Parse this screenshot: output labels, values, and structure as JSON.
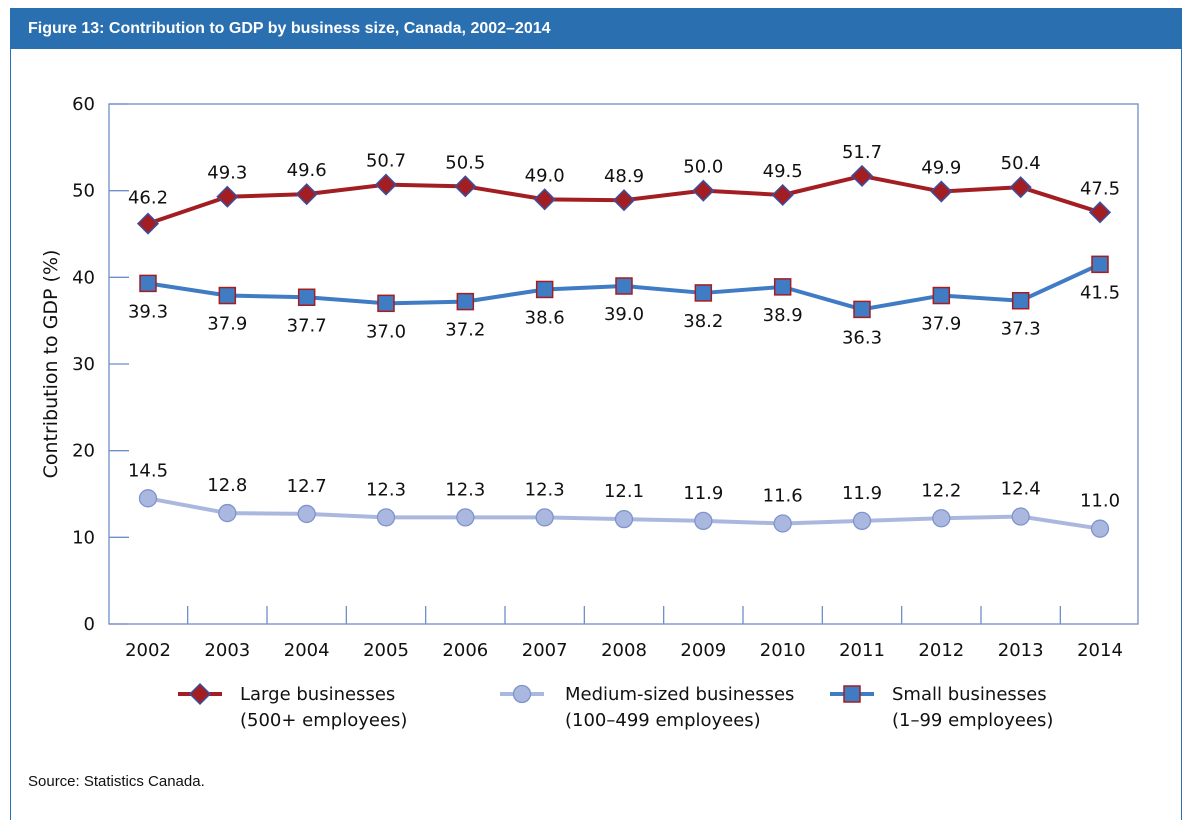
{
  "figure": {
    "title": "Figure 13: Contribution to GDP by business size, Canada, 2002–2014",
    "source": "Source: Statistics Canada."
  },
  "chart_data": {
    "type": "line",
    "title": "Figure 13: Contribution to GDP by business size, Canada, 2002–2014",
    "xlabel": "",
    "ylabel": "Contribution to GDP (%)",
    "ylim": [
      0,
      60
    ],
    "yticks": [
      0,
      10,
      20,
      30,
      40,
      50,
      60
    ],
    "categories": [
      "2002",
      "2003",
      "2004",
      "2005",
      "2006",
      "2007",
      "2008",
      "2009",
      "2010",
      "2011",
      "2012",
      "2013",
      "2014"
    ],
    "grid": false,
    "legend_position": "bottom",
    "series": [
      {
        "name": "Large businesses (500+ employees)",
        "legend_lines": [
          "Large businesses",
          "(500+ employees)"
        ],
        "marker": "diamond",
        "color": "#a31e22",
        "values": [
          46.2,
          49.3,
          49.6,
          50.7,
          50.5,
          49.0,
          48.9,
          50.0,
          49.5,
          51.7,
          49.9,
          50.4,
          47.5
        ],
        "labels": [
          "46.2",
          "49.3",
          "49.6",
          "50.7",
          "50.5",
          "49.0",
          "48.9",
          "50.0",
          "49.5",
          "51.7",
          "49.9",
          "50.4",
          "47.5"
        ]
      },
      {
        "name": "Medium-sized businesses (100–499 employees)",
        "legend_lines": [
          "Medium-sized businesses",
          "(100–499 employees)"
        ],
        "marker": "circle",
        "color": "#aab8e0",
        "values": [
          14.5,
          12.8,
          12.7,
          12.3,
          12.3,
          12.3,
          12.1,
          11.9,
          11.6,
          11.9,
          12.2,
          12.4,
          11.0
        ],
        "labels": [
          "14.5",
          "12.8",
          "12.7",
          "12.3",
          "12.3",
          "12.3",
          "12.1",
          "11.9",
          "11.6",
          "11.9",
          "12.2",
          "12.4",
          "11.0"
        ]
      },
      {
        "name": "Small businesses (1–99 employees)",
        "legend_lines": [
          "Small businesses",
          "(1–99 employees)"
        ],
        "marker": "square",
        "color": "#3f7cc4",
        "values": [
          39.3,
          37.9,
          37.7,
          37.0,
          37.2,
          38.6,
          39.0,
          38.2,
          38.9,
          36.3,
          37.9,
          37.3,
          41.5
        ],
        "labels": [
          "39.3",
          "37.9",
          "37.7",
          "37.0",
          "37.2",
          "38.6",
          "39.0",
          "38.2",
          "38.9",
          "36.3",
          "37.9",
          "37.3",
          "41.5"
        ]
      }
    ]
  }
}
